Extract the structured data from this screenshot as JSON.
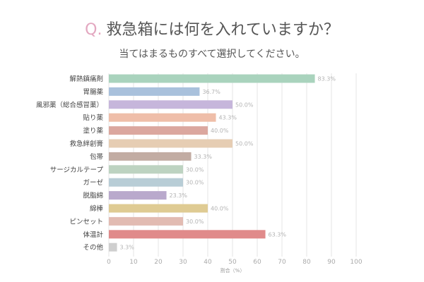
{
  "header": {
    "q_mark": "Q.",
    "title": "救急箱には何を入れていますか？",
    "subtitle": "当てはまるものすべて選択してください。"
  },
  "chart_data": {
    "type": "bar",
    "orientation": "horizontal",
    "categories": [
      "解熱鎮痛剤",
      "胃腸薬",
      "風邪薬（総合感冒薬）",
      "貼り薬",
      "塗り薬",
      "救急絆創膏",
      "包帯",
      "サージカルテープ",
      "ガーゼ",
      "脱脂綿",
      "綿棒",
      "ピンセット",
      "体温計",
      "その他"
    ],
    "values": [
      83.3,
      36.7,
      50.0,
      43.3,
      40.0,
      50.0,
      33.3,
      30.0,
      30.0,
      23.3,
      40.0,
      30.0,
      63.3,
      3.3
    ],
    "value_labels": [
      "83.3%",
      "36.7%",
      "50.0%",
      "43.3%",
      "40.0%",
      "50.0%",
      "33.3%",
      "30.0%",
      "30.0%",
      "23.3%",
      "40.0%",
      "30.0%",
      "63.3%",
      "3.3%"
    ],
    "colors": [
      "#a9d3bd",
      "#a9c1dc",
      "#c6b6db",
      "#efbea9",
      "#dba79f",
      "#e6cdb3",
      "#c2aca3",
      "#bdd3c1",
      "#b8cdd6",
      "#b9a9cc",
      "#dfcb93",
      "#e2bbb2",
      "#e08a8a",
      "#cfcfcf"
    ],
    "xlim": [
      0,
      100
    ],
    "xticks": [
      0,
      10,
      20,
      30,
      40,
      50,
      60,
      70,
      80,
      90,
      100
    ],
    "xlabel": "割合（%）",
    "ylabel": "",
    "grid": true
  }
}
